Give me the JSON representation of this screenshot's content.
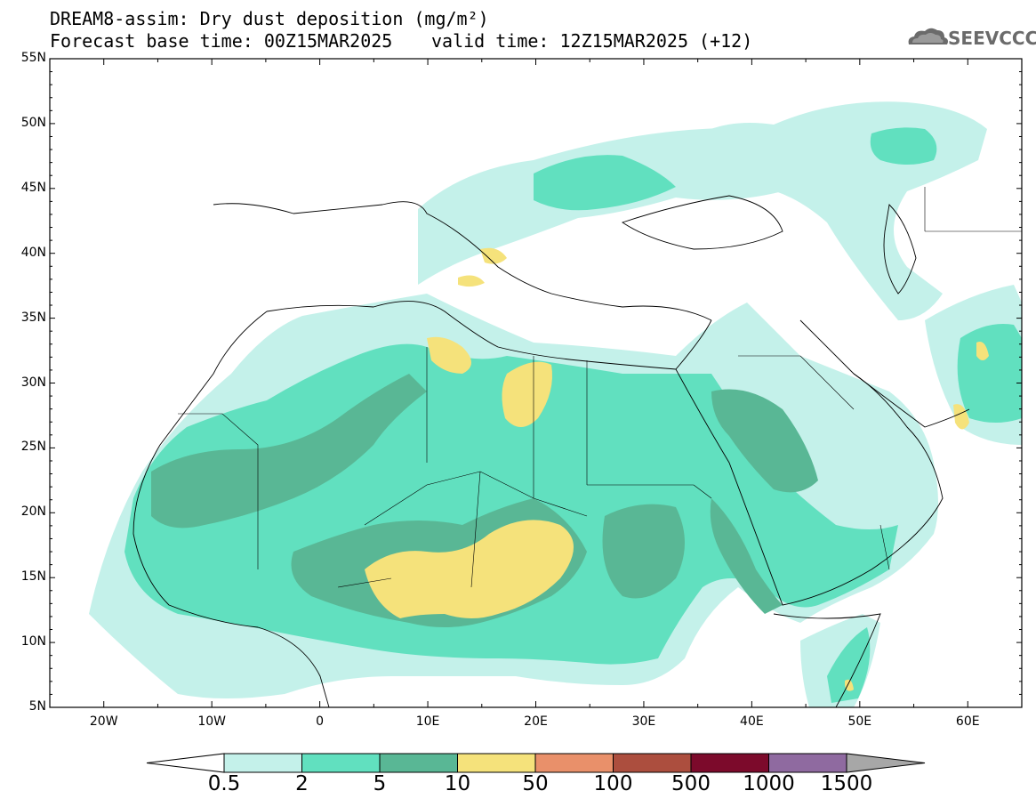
{
  "header": {
    "line1": "DREAM8-assim: Dry dust deposition (mg/m²)",
    "line2": "Forecast base time: 00Z15MAR2025",
    "valid": "valid time: 12Z15MAR2025 (+12)",
    "logo_text": "SEEVCCC",
    "logo_icon": "cloud-logo-icon"
  },
  "map": {
    "lon_range": [
      -25,
      65
    ],
    "lat_range": [
      5,
      55
    ],
    "lat_labels": [
      "55N",
      "50N",
      "45N",
      "40N",
      "35N",
      "30N",
      "25N",
      "20N",
      "15N",
      "10N",
      "5N"
    ],
    "lon_labels": [
      "20W",
      "10W",
      "0",
      "10E",
      "20E",
      "30E",
      "40E",
      "50E",
      "60E"
    ]
  },
  "legend": {
    "labels": [
      "0.5",
      "2",
      "5",
      "10",
      "50",
      "100",
      "500",
      "1000",
      "1500"
    ],
    "colors": [
      "#c4f1ea",
      "#61e0bf",
      "#59b795",
      "#f5e27b",
      "#e9906a",
      "#ac4e3e",
      "#7c0a2b",
      "#8f6aa0"
    ],
    "under_color": "#ffffff",
    "over_color": "#a7a7a7"
  }
}
